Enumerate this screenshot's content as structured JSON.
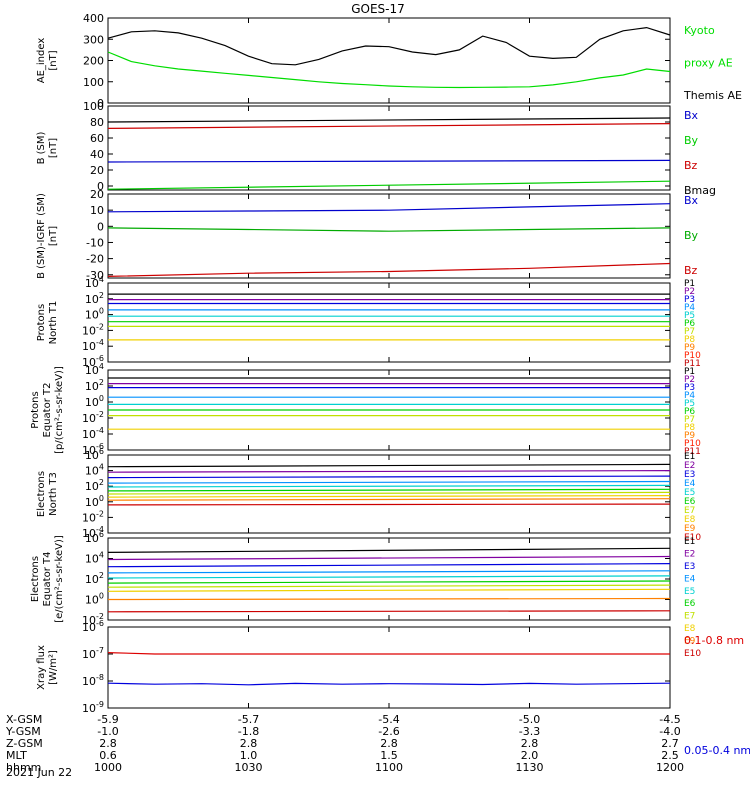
{
  "title": "GOES-17",
  "date_label": "2021 Jun 22",
  "ephemeris": {
    "row_labels": [
      "X-GSM",
      "Y-GSM",
      "Z-GSM",
      "MLT",
      "hhmm"
    ],
    "columns": [
      [
        "-5.9",
        "-1.0",
        "2.8",
        "0.6",
        "1000"
      ],
      [
        "-5.7",
        "-1.8",
        "2.8",
        "1.0",
        "1030"
      ],
      [
        "-5.4",
        "-2.6",
        "2.8",
        "1.5",
        "1100"
      ],
      [
        "-5.0",
        "-3.3",
        "2.8",
        "2.0",
        "1130"
      ],
      [
        "-4.5",
        "-4.0",
        "2.7",
        "2.5",
        "1200"
      ]
    ]
  },
  "chart_data": [
    {
      "type": "line",
      "ylabel": [
        "AE_index",
        "[nT]"
      ],
      "ylim": [
        0,
        400
      ],
      "yticks": [
        0,
        100,
        200,
        300,
        400
      ],
      "ytick_labels": [
        "0",
        "100",
        "200",
        "300",
        "400"
      ],
      "x_minutes": [
        0,
        5,
        10,
        15,
        20,
        25,
        30,
        35,
        40,
        45,
        50,
        55,
        60,
        65,
        70,
        75,
        80,
        85,
        90,
        95,
        100,
        105,
        110,
        115,
        120
      ],
      "series": [
        {
          "name": "Kyoto proxy AE",
          "color": "#00dd00",
          "values": [
            240,
            195,
            175,
            160,
            150,
            140,
            130,
            120,
            110,
            100,
            92,
            86,
            80,
            76,
            74,
            73,
            74,
            75,
            76,
            85,
            100,
            118,
            132,
            160,
            148
          ]
        },
        {
          "name": "Themis AE",
          "color": "#000000",
          "values": [
            305,
            335,
            340,
            330,
            305,
            270,
            220,
            185,
            180,
            205,
            245,
            268,
            265,
            240,
            228,
            250,
            315,
            285,
            220,
            210,
            215,
            300,
            340,
            355,
            320
          ]
        }
      ],
      "legend": [
        {
          "text": "Kyoto",
          "color": "#00dd00"
        },
        {
          "text": "proxy AE",
          "color": "#00dd00"
        },
        {
          "text": "Themis AE",
          "color": "#000000"
        }
      ]
    },
    {
      "type": "line",
      "ylabel": [
        "B (SM)",
        "[nT]"
      ],
      "ylim": [
        -5,
        100
      ],
      "yticks": [
        0,
        20,
        40,
        60,
        80,
        100
      ],
      "ytick_labels": [
        "0",
        "20",
        "40",
        "60",
        "80",
        "100"
      ],
      "x_minutes": [
        0,
        120
      ],
      "series": [
        {
          "name": "Bx",
          "color": "#0000cc",
          "values": [
            30,
            32
          ]
        },
        {
          "name": "By",
          "color": "#00cc00",
          "values": [
            -4,
            6
          ]
        },
        {
          "name": "Bz",
          "color": "#cc0000",
          "values": [
            72,
            78
          ]
        },
        {
          "name": "Bmag",
          "color": "#000000",
          "values": [
            80,
            85
          ]
        }
      ],
      "legend": [
        {
          "text": "Bx",
          "color": "#0000cc"
        },
        {
          "text": "By",
          "color": "#00cc00"
        },
        {
          "text": "Bz",
          "color": "#cc0000"
        },
        {
          "text": "Bmag",
          "color": "#000000"
        }
      ]
    },
    {
      "type": "line",
      "ylabel": [
        "B (SM)-IGRF (SM)",
        "[nT]"
      ],
      "ylim": [
        -32,
        20
      ],
      "yticks": [
        -30,
        -20,
        -10,
        0,
        10,
        20
      ],
      "ytick_labels": [
        "-30",
        "-20",
        "-10",
        "0",
        "10",
        "20"
      ],
      "x_minutes": [
        0,
        30,
        60,
        90,
        120
      ],
      "series": [
        {
          "name": "Bx",
          "color": "#0000cc",
          "values": [
            9,
            9.5,
            10,
            12,
            14
          ]
        },
        {
          "name": "By",
          "color": "#00aa00",
          "values": [
            -1,
            -2,
            -3,
            -2,
            -1
          ]
        },
        {
          "name": "Bz",
          "color": "#cc0000",
          "values": [
            -31,
            -29,
            -28,
            -26,
            -23
          ]
        }
      ],
      "legend": [
        {
          "text": "Bx",
          "color": "#0000cc"
        },
        {
          "text": "By",
          "color": "#00aa00"
        },
        {
          "text": "Bz",
          "color": "#cc0000"
        }
      ]
    },
    {
      "type": "line",
      "log": true,
      "ylabel": [
        "Protons",
        "North T1"
      ],
      "ylim": [
        -6,
        4
      ],
      "yticks": [
        -6,
        -4,
        -2,
        0,
        2,
        4
      ],
      "ytick_labels": [
        "10^-6",
        "10^-4",
        "10^-2",
        "10^0",
        "10^2",
        "10^4"
      ],
      "x_minutes": [
        0,
        120
      ],
      "series": [
        {
          "name": "P1",
          "color": "#000000",
          "values": [
            2.6,
            2.6
          ]
        },
        {
          "name": "P2",
          "color": "#8000a0",
          "values": [
            1.9,
            1.9
          ]
        },
        {
          "name": "P3",
          "color": "#0000dd",
          "values": [
            1.4,
            1.4
          ]
        },
        {
          "name": "P4",
          "color": "#0090ff",
          "values": [
            0.6,
            0.6
          ]
        },
        {
          "name": "P5",
          "color": "#00d0d0",
          "values": [
            -0.2,
            -0.2
          ]
        },
        {
          "name": "P6",
          "color": "#00d000",
          "values": [
            -0.9,
            -0.9
          ]
        },
        {
          "name": "P7",
          "color": "#c0e000",
          "values": [
            -1.5,
            -1.5
          ]
        },
        {
          "name": "P8",
          "color": "#f0d000",
          "values": [
            -3.2,
            -3.2
          ]
        }
      ],
      "legend": [
        {
          "text": "P1",
          "color": "#000000"
        },
        {
          "text": "P2",
          "color": "#8000a0"
        },
        {
          "text": "P3",
          "color": "#0000dd"
        },
        {
          "text": "P4",
          "color": "#0090ff"
        },
        {
          "text": "P5",
          "color": "#00d0d0"
        },
        {
          "text": "P6",
          "color": "#00d000"
        },
        {
          "text": "P7",
          "color": "#c0e000"
        },
        {
          "text": "P8",
          "color": "#f0d000"
        },
        {
          "text": "P9",
          "color": "#ff8000"
        },
        {
          "text": "P10",
          "color": "#ff2000"
        },
        {
          "text": "P11",
          "color": "#c00000"
        }
      ]
    },
    {
      "type": "line",
      "log": true,
      "ylabel": [
        "Protons",
        "Equator T2",
        "[p/(cm²-s-sr-keV)]"
      ],
      "ylim": [
        -6,
        4
      ],
      "yticks": [
        -6,
        -4,
        -2,
        0,
        2,
        4
      ],
      "ytick_labels": [
        "10^-6",
        "10^-4",
        "10^-2",
        "10^0",
        "10^2",
        "10^4"
      ],
      "x_minutes": [
        0,
        120
      ],
      "series": [
        {
          "name": "P1",
          "color": "#000000",
          "values": [
            3.0,
            3.0
          ]
        },
        {
          "name": "P2",
          "color": "#8000a0",
          "values": [
            2.3,
            2.3
          ]
        },
        {
          "name": "P3",
          "color": "#0000dd",
          "values": [
            1.8,
            1.8
          ]
        },
        {
          "name": "P4",
          "color": "#0090ff",
          "values": [
            0.6,
            0.6
          ]
        },
        {
          "name": "P5",
          "color": "#00d0d0",
          "values": [
            -0.3,
            -0.3
          ]
        },
        {
          "name": "P6",
          "color": "#00d000",
          "values": [
            -1.0,
            -1.0
          ]
        },
        {
          "name": "P7",
          "color": "#c0e000",
          "values": [
            -1.7,
            -1.7
          ]
        },
        {
          "name": "P8",
          "color": "#f0d000",
          "values": [
            -3.4,
            -3.4
          ]
        }
      ],
      "legend": [
        {
          "text": "P1",
          "color": "#000000"
        },
        {
          "text": "P2",
          "color": "#8000a0"
        },
        {
          "text": "P3",
          "color": "#0000dd"
        },
        {
          "text": "P4",
          "color": "#0090ff"
        },
        {
          "text": "P5",
          "color": "#00d0d0"
        },
        {
          "text": "P6",
          "color": "#00d000"
        },
        {
          "text": "P7",
          "color": "#c0e000"
        },
        {
          "text": "P8",
          "color": "#f0d000"
        },
        {
          "text": "P9",
          "color": "#ff8000"
        },
        {
          "text": "P10",
          "color": "#ff2000"
        },
        {
          "text": "P11",
          "color": "#c00000"
        }
      ]
    },
    {
      "type": "line",
      "log": true,
      "ylabel": [
        "Electrons",
        "North T3"
      ],
      "ylim": [
        -4,
        6
      ],
      "yticks": [
        -4,
        -2,
        0,
        2,
        4,
        6
      ],
      "ytick_labels": [
        "10^-4",
        "10^-2",
        "10^0",
        "10^2",
        "10^4",
        "10^6"
      ],
      "x_minutes": [
        0,
        120
      ],
      "series": [
        {
          "name": "E1",
          "color": "#000000",
          "values": [
            4.5,
            4.8
          ]
        },
        {
          "name": "E2",
          "color": "#8000a0",
          "values": [
            3.8,
            4.0
          ]
        },
        {
          "name": "E3",
          "color": "#0000dd",
          "values": [
            3.1,
            3.3
          ]
        },
        {
          "name": "E4",
          "color": "#0090ff",
          "values": [
            2.4,
            2.6
          ]
        },
        {
          "name": "E5",
          "color": "#00d0d0",
          "values": [
            1.9,
            2.1
          ]
        },
        {
          "name": "E6",
          "color": "#00d000",
          "values": [
            1.4,
            1.6
          ]
        },
        {
          "name": "E7",
          "color": "#c0e000",
          "values": [
            1.0,
            1.2
          ]
        },
        {
          "name": "E8",
          "color": "#f0d000",
          "values": [
            0.6,
            0.8
          ]
        },
        {
          "name": "E9",
          "color": "#ff8000",
          "values": [
            0.2,
            0.4
          ]
        },
        {
          "name": "E10",
          "color": "#cc0000",
          "values": [
            -0.4,
            -0.3
          ]
        }
      ],
      "legend": [
        {
          "text": "E1",
          "color": "#000000"
        },
        {
          "text": "E2",
          "color": "#8000a0"
        },
        {
          "text": "E3",
          "color": "#0000dd"
        },
        {
          "text": "E4",
          "color": "#0090ff"
        },
        {
          "text": "E5",
          "color": "#00d0d0"
        },
        {
          "text": "E6",
          "color": "#00d000"
        },
        {
          "text": "E7",
          "color": "#c0e000"
        },
        {
          "text": "E8",
          "color": "#f0d000"
        },
        {
          "text": "E9",
          "color": "#ff8000"
        },
        {
          "text": "E10",
          "color": "#cc0000"
        }
      ]
    },
    {
      "type": "line",
      "log": true,
      "ylabel": [
        "Electrons",
        "Equator T4",
        "[e/(cm²-s-sr-keV)]"
      ],
      "ylim": [
        -2,
        6
      ],
      "yticks": [
        -2,
        0,
        2,
        4,
        6
      ],
      "ytick_labels": [
        "10^-2",
        "10^0",
        "10^2",
        "10^4",
        "10^6"
      ],
      "x_minutes": [
        0,
        120
      ],
      "series": [
        {
          "name": "E1",
          "color": "#000000",
          "values": [
            4.6,
            5.0
          ]
        },
        {
          "name": "E2",
          "color": "#8000a0",
          "values": [
            3.9,
            4.2
          ]
        },
        {
          "name": "E3",
          "color": "#0000dd",
          "values": [
            3.2,
            3.5
          ]
        },
        {
          "name": "E4",
          "color": "#0090ff",
          "values": [
            2.6,
            2.8
          ]
        },
        {
          "name": "E5",
          "color": "#00d0d0",
          "values": [
            2.1,
            2.3
          ]
        },
        {
          "name": "E6",
          "color": "#00d000",
          "values": [
            1.6,
            1.8
          ]
        },
        {
          "name": "E7",
          "color": "#c0e000",
          "values": [
            1.2,
            1.4
          ]
        },
        {
          "name": "E8",
          "color": "#f0d000",
          "values": [
            0.8,
            1.0
          ]
        },
        {
          "name": "E9",
          "color": "#ff8000",
          "values": [
            0.0,
            0.1
          ]
        },
        {
          "name": "E10",
          "color": "#cc0000",
          "values": [
            -1.2,
            -1.1
          ]
        }
      ],
      "legend": [
        {
          "text": "E1",
          "color": "#000000"
        },
        {
          "text": "E2",
          "color": "#8000a0"
        },
        {
          "text": "E3",
          "color": "#0000dd"
        },
        {
          "text": "E4",
          "color": "#0090ff"
        },
        {
          "text": "E5",
          "color": "#00d0d0"
        },
        {
          "text": "E6",
          "color": "#00d000"
        },
        {
          "text": "E7",
          "color": "#c0e000"
        },
        {
          "text": "E8",
          "color": "#f0d000"
        },
        {
          "text": "E9",
          "color": "#ff8000"
        },
        {
          "text": "E10",
          "color": "#cc0000"
        }
      ]
    },
    {
      "type": "line",
      "log": true,
      "ylabel": [
        "Xray flux",
        "[W/m²]"
      ],
      "ylim": [
        -9,
        -6
      ],
      "yticks": [
        -9,
        -8,
        -7,
        -6
      ],
      "ytick_labels": [
        "10^-9",
        "10^-8",
        "10^-7",
        "10^-6"
      ],
      "x_minutes": [
        0,
        10,
        20,
        30,
        40,
        50,
        60,
        70,
        80,
        90,
        100,
        110,
        120
      ],
      "series": [
        {
          "name": "0.1-0.8 nm",
          "color": "#dd0000",
          "values": [
            -6.95,
            -7.0,
            -7.0,
            -7.0,
            -7.0,
            -7.0,
            -7.0,
            -7.0,
            -7.0,
            -7.0,
            -7.0,
            -7.0,
            -7.0
          ]
        },
        {
          "name": "0.05-0.4 nm",
          "color": "#0000dd",
          "values": [
            -8.08,
            -8.12,
            -8.1,
            -8.14,
            -8.09,
            -8.12,
            -8.1,
            -8.11,
            -8.13,
            -8.09,
            -8.12,
            -8.1,
            -8.08
          ]
        }
      ],
      "legend": [
        {
          "text": "0.1-0.8 nm",
          "color": "#dd0000"
        },
        {
          "text": "0.05-0.4 nm",
          "color": "#0000dd"
        }
      ]
    }
  ]
}
